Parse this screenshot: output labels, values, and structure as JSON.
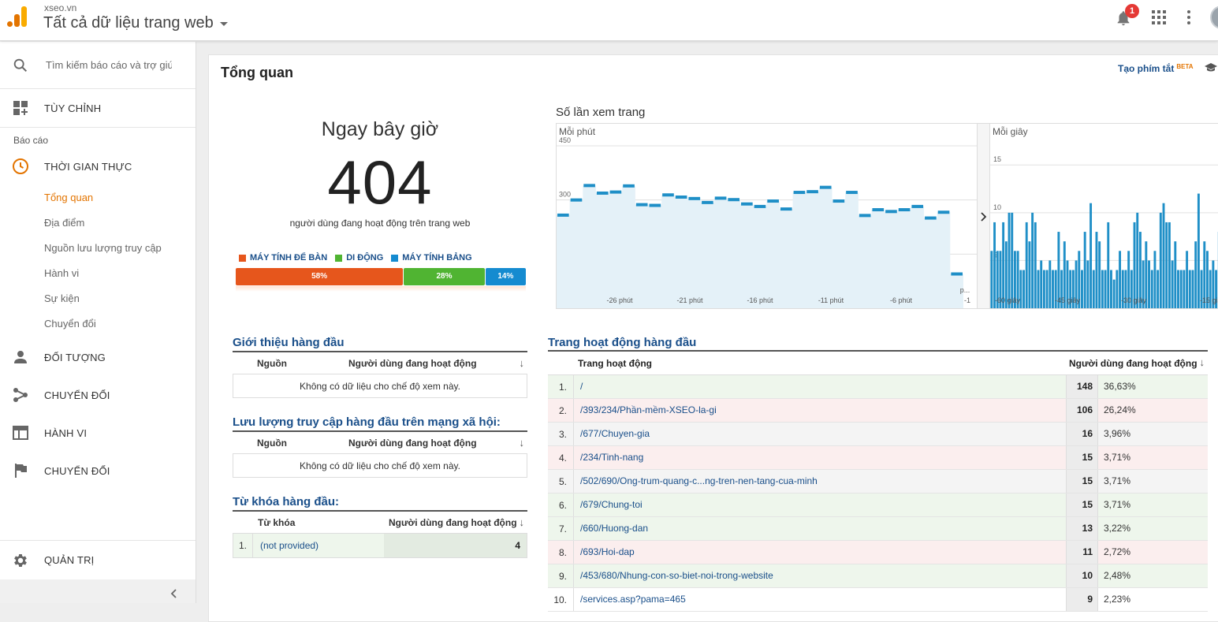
{
  "header": {
    "domain": "xseo.vn",
    "view_name": "Tất cả dữ liệu trang web",
    "notification_count": "1"
  },
  "sidebar": {
    "search_placeholder": "Tìm kiếm báo cáo và trợ giúp",
    "customize": "TÙY CHỈNH",
    "reports_label": "Báo cáo",
    "realtime": "THỜI GIAN THỰC",
    "realtime_items": [
      "Tổng quan",
      "Địa điểm",
      "Nguồn lưu lượng truy cập",
      "Hành vi",
      "Sự kiện",
      "Chuyển đổi"
    ],
    "audience": "ĐỐI TƯỢNG",
    "acquisition": "CHUYỂN ĐỔI",
    "behavior": "HÀNH VI",
    "conversions": "CHUYỂN ĐỔI",
    "admin": "QUẢN TRỊ"
  },
  "main": {
    "title": "Tổng quan",
    "shortcut": "Tạo phím tắt",
    "beta": "BETA",
    "now": {
      "label": "Ngay bây giờ",
      "value": "404",
      "caption": "người dùng đang hoạt động trên trang web"
    },
    "devices": [
      {
        "name": "MÁY TÍNH ĐỂ BÀN",
        "percent": "58%",
        "share": 58,
        "color": "#e6561c"
      },
      {
        "name": "DI ĐỘNG",
        "percent": "28%",
        "share": 28,
        "color": "#50b432"
      },
      {
        "name": "MÁY TÍNH BẢNG",
        "percent": "14%",
        "share": 14,
        "color": "#158bd0"
      }
    ],
    "pageviews": {
      "title": "Số lần xem trang",
      "per_minute_label": "Mỗi phút",
      "per_second_label": "Mỗi giây"
    },
    "top_referrals": {
      "title": "Giới thiệu hàng đầu",
      "col_source": "Nguồn",
      "col_users": "Người dùng đang hoạt động",
      "empty": "Không có dữ liệu cho chế độ xem này."
    },
    "top_social": {
      "title": "Lưu lượng truy cập hàng đầu trên mạng xã hội:",
      "col_source": "Nguồn",
      "col_users": "Người dùng đang hoạt động",
      "empty": "Không có dữ liệu cho chế độ xem này."
    },
    "top_keywords": {
      "title": "Từ khóa hàng đầu:",
      "col_keyword": "Từ khóa",
      "col_users": "Người dùng đang hoạt động",
      "rows": [
        {
          "num": "1.",
          "keyword": "(not provided)",
          "users": "4"
        }
      ]
    },
    "top_pages": {
      "title": "Trang hoạt động hàng đầu",
      "col_page": "Trang hoạt động",
      "col_users": "Người dùng đang hoạt động",
      "rows": [
        {
          "num": "1.",
          "path": "/",
          "users": "148",
          "pct": "36,63%"
        },
        {
          "num": "2.",
          "path": "/393/234/Phần-mềm-XSEO-la-gi",
          "users": "106",
          "pct": "26,24%"
        },
        {
          "num": "3.",
          "path": "/677/Chuyen-gia",
          "users": "16",
          "pct": "3,96%"
        },
        {
          "num": "4.",
          "path": "/234/Tinh-nang",
          "users": "15",
          "pct": "3,71%"
        },
        {
          "num": "5.",
          "path": "/502/690/Ong-trum-quang-c...ng-tren-nen-tang-cua-minh",
          "users": "15",
          "pct": "3,71%"
        },
        {
          "num": "6.",
          "path": "/679/Chung-toi",
          "users": "15",
          "pct": "3,71%"
        },
        {
          "num": "7.",
          "path": "/660/Huong-dan",
          "users": "13",
          "pct": "3,22%"
        },
        {
          "num": "8.",
          "path": "/693/Hoi-dap",
          "users": "11",
          "pct": "2,72%"
        },
        {
          "num": "9.",
          "path": "/453/680/Nhung-con-so-biet-noi-trong-website",
          "users": "10",
          "pct": "2,48%"
        },
        {
          "num": "10.",
          "path": "/services.asp?pama=465",
          "users": "9",
          "pct": "2,23%"
        }
      ]
    }
  },
  "chart_data": [
    {
      "type": "area",
      "title": "Mỗi phút",
      "y_ticks": [
        "450",
        "300",
        "150"
      ],
      "ylim": [
        0,
        450
      ],
      "x_tick_labels": [
        "-26 phút",
        "-21 phút",
        "-16 phút",
        "-11 phút",
        "-6 phút",
        "-1"
      ],
      "extra_label": "p...",
      "x": [
        -30,
        -29,
        -28,
        -27,
        -26,
        -25,
        -24,
        -23,
        -22,
        -21,
        -20,
        -19,
        -18,
        -17,
        -16,
        -15,
        -14,
        -13,
        -12,
        -11,
        -10,
        -9,
        -8,
        -7,
        -6,
        -5,
        -4,
        -3,
        -2,
        -1,
        0
      ],
      "values": [
        258,
        300,
        340,
        319,
        322,
        339,
        287,
        285,
        314,
        308,
        304,
        293,
        305,
        301,
        289,
        282,
        297,
        275,
        321,
        323,
        335,
        297,
        321,
        257,
        273,
        268,
        273,
        282,
        250,
        266,
        95
      ]
    },
    {
      "type": "bar",
      "title": "Mỗi giây",
      "y_ticks": [
        "15",
        "10",
        "5"
      ],
      "ylim": [
        0,
        17
      ],
      "x_tick_labels": [
        "-60 giây",
        "-45 giây",
        "-30 giây",
        "-15 giây"
      ],
      "values": [
        6,
        9,
        6,
        6,
        9,
        7,
        10,
        10,
        6,
        6,
        4,
        4,
        9,
        7,
        10,
        9,
        4,
        5,
        4,
        4,
        5,
        4,
        4,
        8,
        4,
        7,
        5,
        4,
        4,
        5,
        6,
        4,
        8,
        5,
        11,
        4,
        8,
        7,
        4,
        4,
        9,
        4,
        3,
        4,
        6,
        4,
        4,
        6,
        4,
        9,
        10,
        8,
        5,
        7,
        5,
        4,
        6,
        4,
        10,
        11,
        9,
        9,
        5,
        7,
        4,
        4,
        4,
        6,
        4,
        4,
        7,
        12,
        4,
        7,
        6,
        4,
        5,
        4,
        8,
        4,
        7,
        6,
        4,
        8,
        6,
        5
      ]
    }
  ]
}
